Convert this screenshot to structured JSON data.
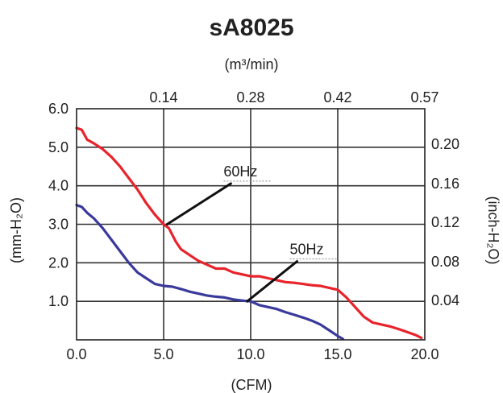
{
  "chart_data": {
    "type": "line",
    "title": "sA8025",
    "xlabel": "(CFM)",
    "x2label": "(m³/min)",
    "ylabel": "(mm-H₂O)",
    "y2label": "(inch-H₂O)",
    "xlim": [
      0,
      20
    ],
    "ylim": [
      0,
      6
    ],
    "x_ticks": [
      {
        "value": 0,
        "label": "0.0"
      },
      {
        "value": 5,
        "label": "5.0"
      },
      {
        "value": 10,
        "label": "10.0"
      },
      {
        "value": 15,
        "label": "15.0"
      },
      {
        "value": 20,
        "label": "20.0"
      }
    ],
    "y_ticks": [
      {
        "value": 1,
        "label": "1.0"
      },
      {
        "value": 2,
        "label": "2.0"
      },
      {
        "value": 3,
        "label": "3.0"
      },
      {
        "value": 4,
        "label": "4.0"
      },
      {
        "value": 5,
        "label": "5.0"
      },
      {
        "value": 6,
        "label": "6.0"
      }
    ],
    "x2_ticks": [
      {
        "value": 5,
        "label": "0.14"
      },
      {
        "value": 10,
        "label": "0.28"
      },
      {
        "value": 15,
        "label": "0.42"
      },
      {
        "value": 20,
        "label": "0.57"
      }
    ],
    "y2_ticks": [
      {
        "value": 1.02,
        "label": "0.04"
      },
      {
        "value": 2.03,
        "label": "0.08"
      },
      {
        "value": 3.05,
        "label": "0.12"
      },
      {
        "value": 4.06,
        "label": "0.16"
      },
      {
        "value": 5.08,
        "label": "0.20"
      }
    ],
    "series": [
      {
        "name": "60Hz",
        "color": "#e8232b",
        "x": [
          0,
          0.3,
          0.6,
          1.0,
          1.5,
          2.0,
          2.5,
          3.0,
          3.5,
          4.0,
          4.5,
          5.0,
          5.3,
          5.7,
          6.0,
          6.5,
          7.0,
          7.5,
          8.0,
          8.5,
          9.0,
          9.5,
          10.0,
          10.5,
          11.0,
          11.5,
          12.0,
          12.5,
          13.0,
          13.5,
          14.0,
          14.5,
          15.0,
          15.5,
          16.0,
          16.5,
          17.0,
          17.5,
          18.0,
          18.5,
          19.0,
          19.5,
          19.8
        ],
        "y": [
          5.5,
          5.45,
          5.2,
          5.1,
          4.95,
          4.75,
          4.5,
          4.2,
          3.9,
          3.55,
          3.25,
          3.0,
          2.9,
          2.55,
          2.35,
          2.2,
          2.05,
          1.95,
          1.85,
          1.85,
          1.75,
          1.7,
          1.65,
          1.65,
          1.6,
          1.55,
          1.5,
          1.48,
          1.45,
          1.42,
          1.4,
          1.35,
          1.3,
          1.1,
          0.85,
          0.6,
          0.45,
          0.4,
          0.35,
          0.28,
          0.2,
          0.12,
          0.05
        ]
      },
      {
        "name": "50Hz",
        "color": "#3a3a9c",
        "x": [
          0,
          0.3,
          0.6,
          1.0,
          1.5,
          2.0,
          2.5,
          3.0,
          3.5,
          4.0,
          4.5,
          5.0,
          5.5,
          6.0,
          6.5,
          7.0,
          7.5,
          8.0,
          8.5,
          9.0,
          9.5,
          10.0,
          10.5,
          11.0,
          11.5,
          12.0,
          12.5,
          13.0,
          13.5,
          14.0,
          14.5,
          15.0,
          15.3
        ],
        "y": [
          3.5,
          3.45,
          3.3,
          3.15,
          2.9,
          2.6,
          2.3,
          2.0,
          1.75,
          1.6,
          1.45,
          1.4,
          1.38,
          1.32,
          1.25,
          1.2,
          1.15,
          1.12,
          1.1,
          1.05,
          1.02,
          1.0,
          0.9,
          0.85,
          0.8,
          0.72,
          0.65,
          0.58,
          0.5,
          0.4,
          0.25,
          0.1,
          0.02
        ]
      }
    ],
    "annotations": [
      {
        "text": "60Hz",
        "x": 9.0,
        "y": 4.12,
        "point": [
          5.2,
          3.0
        ]
      },
      {
        "text": "50Hz",
        "x": 12.8,
        "y": 2.1,
        "point": [
          9.8,
          1.0
        ]
      }
    ],
    "grid": true,
    "legend": "none"
  }
}
